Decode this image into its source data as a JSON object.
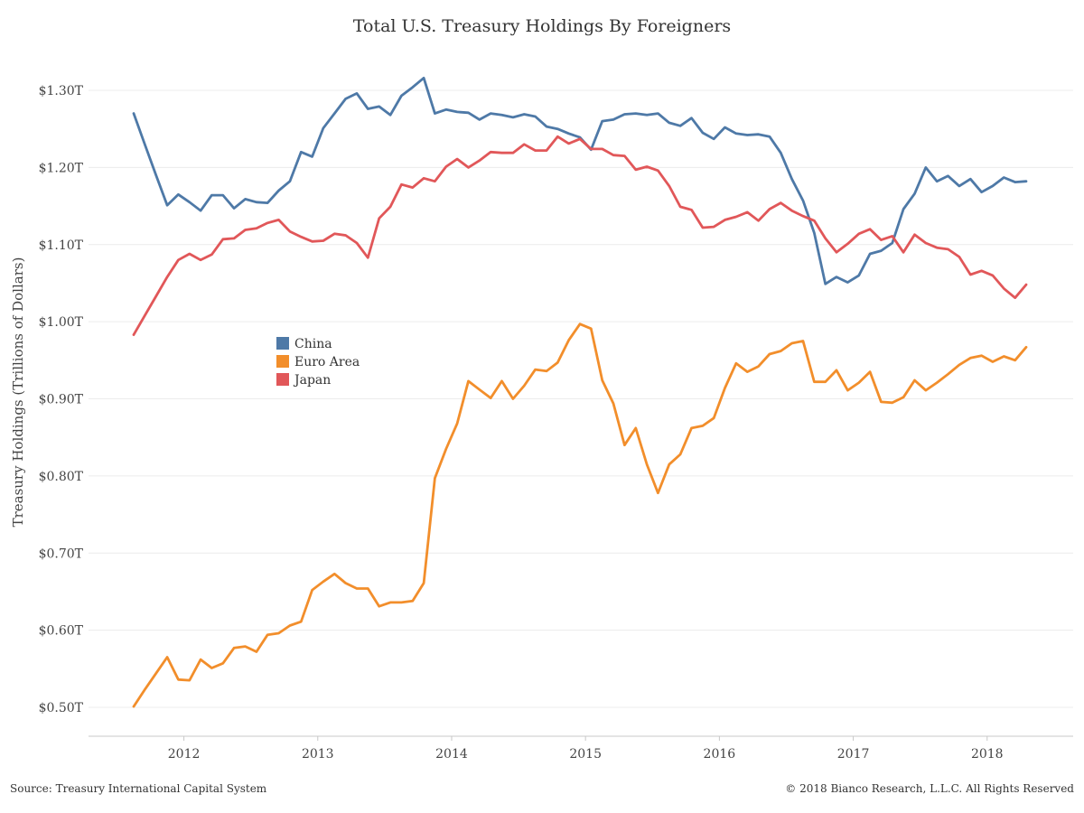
{
  "chart_data": {
    "type": "line",
    "title": "Total U.S. Treasury Holdings By Foreigners",
    "xlabel": "",
    "ylabel": "Treasury Holdings (Trillions of Dollars)",
    "x_ticks": [
      "2012",
      "2013",
      "2014",
      "2015",
      "2016",
      "2017",
      "2018"
    ],
    "y_ticks": [
      "$0.50T",
      "$0.60T",
      "$0.70T",
      "$0.80T",
      "$0.90T",
      "$1.00T",
      "$1.10T",
      "$1.20T",
      "$1.30T"
    ],
    "ylim": [
      0.5,
      1.3
    ],
    "grid": "horizontal",
    "legend_position": "left-middle",
    "x_start": "2011-09",
    "x_end": "2018-05",
    "series": [
      {
        "name": "China",
        "color": "#4e79a7",
        "values": [
          1.27,
          1.23,
          1.19,
          1.151,
          1.165,
          1.155,
          1.144,
          1.164,
          1.164,
          1.147,
          1.159,
          1.155,
          1.154,
          1.17,
          1.182,
          1.22,
          1.214,
          1.251,
          1.27,
          1.289,
          1.296,
          1.276,
          1.279,
          1.268,
          1.293,
          1.304,
          1.316,
          1.27,
          1.275,
          1.272,
          1.271,
          1.262,
          1.27,
          1.268,
          1.265,
          1.269,
          1.266,
          1.253,
          1.25,
          1.244,
          1.239,
          1.223,
          1.26,
          1.262,
          1.269,
          1.27,
          1.268,
          1.27,
          1.258,
          1.254,
          1.264,
          1.245,
          1.237,
          1.252,
          1.244,
          1.242,
          1.243,
          1.24,
          1.219,
          1.185,
          1.157,
          1.115,
          1.049,
          1.058,
          1.051,
          1.06,
          1.088,
          1.092,
          1.102,
          1.146,
          1.166,
          1.2,
          1.182,
          1.189,
          1.176,
          1.185,
          1.168,
          1.176,
          1.187,
          1.181,
          1.182
        ]
      },
      {
        "name": "Euro Area",
        "color": "#f28e2b",
        "values": [
          0.501,
          0.523,
          0.544,
          0.565,
          0.536,
          0.535,
          0.562,
          0.551,
          0.557,
          0.577,
          0.579,
          0.572,
          0.594,
          0.596,
          0.606,
          0.611,
          0.652,
          0.663,
          0.673,
          0.661,
          0.654,
          0.654,
          0.631,
          0.636,
          0.636,
          0.638,
          0.661,
          0.797,
          0.835,
          0.868,
          0.923,
          0.912,
          0.901,
          0.923,
          0.9,
          0.917,
          0.938,
          0.936,
          0.947,
          0.976,
          0.997,
          0.991,
          0.924,
          0.894,
          0.84,
          0.862,
          0.815,
          0.778,
          0.815,
          0.828,
          0.862,
          0.865,
          0.875,
          0.914,
          0.946,
          0.935,
          0.942,
          0.958,
          0.962,
          0.972,
          0.975,
          0.922,
          0.922,
          0.937,
          0.911,
          0.921,
          0.935,
          0.896,
          0.895,
          0.902,
          0.924,
          0.911,
          0.921,
          0.932,
          0.944,
          0.953,
          0.956,
          0.948,
          0.955,
          0.95,
          0.967
        ]
      },
      {
        "name": "Japan",
        "color": "#e15759",
        "values": [
          0.983,
          1.008,
          1.033,
          1.058,
          1.08,
          1.088,
          1.08,
          1.087,
          1.107,
          1.108,
          1.119,
          1.121,
          1.128,
          1.132,
          1.117,
          1.11,
          1.104,
          1.105,
          1.114,
          1.112,
          1.102,
          1.083,
          1.134,
          1.149,
          1.178,
          1.174,
          1.186,
          1.182,
          1.201,
          1.211,
          1.2,
          1.209,
          1.22,
          1.219,
          1.219,
          1.23,
          1.222,
          1.222,
          1.24,
          1.231,
          1.237,
          1.224,
          1.224,
          1.216,
          1.215,
          1.197,
          1.201,
          1.196,
          1.176,
          1.149,
          1.145,
          1.122,
          1.123,
          1.132,
          1.136,
          1.142,
          1.131,
          1.146,
          1.154,
          1.144,
          1.137,
          1.131,
          1.108,
          1.09,
          1.101,
          1.114,
          1.12,
          1.106,
          1.111,
          1.09,
          1.113,
          1.102,
          1.096,
          1.094,
          1.084,
          1.061,
          1.066,
          1.06,
          1.043,
          1.031,
          1.048
        ]
      }
    ]
  },
  "footer": {
    "source": "Source: Treasury International Capital System",
    "copyright": "© 2018 Bianco Research, L.L.C. All Rights Reserved"
  }
}
